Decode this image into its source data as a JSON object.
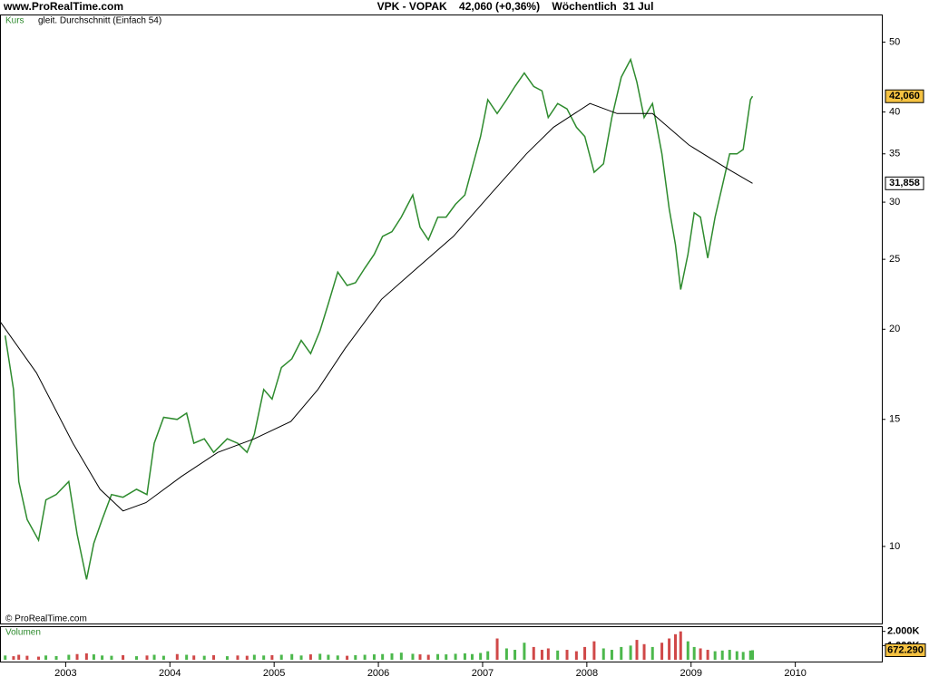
{
  "header": {
    "site": "www.ProRealTime.com"
  },
  "footer": {
    "copyright": "© ProRealTime.com"
  },
  "chart_data": [
    {
      "type": "line",
      "title": "VPK - VOPAK    42,060 (+0,36%)    Wöchentlich  31 Jul",
      "log_scale": true,
      "xlim": [
        2002.37,
        2010.83
      ],
      "ylim": [
        7.82,
        54.6
      ],
      "yticks": [
        10,
        15,
        20,
        25,
        30,
        35,
        40,
        50
      ],
      "series": [
        {
          "name": "Kurs",
          "color": "#2e8b2e",
          "last_label": "42,060",
          "x": [
            2002.42,
            2002.5,
            2002.55,
            2002.63,
            2002.74,
            2002.81,
            2002.91,
            2003.03,
            2003.11,
            2003.2,
            2003.27,
            2003.35,
            2003.44,
            2003.55,
            2003.68,
            2003.78,
            2003.85,
            2003.94,
            2004.07,
            2004.16,
            2004.23,
            2004.33,
            2004.42,
            2004.55,
            2004.65,
            2004.74,
            2004.81,
            2004.9,
            2004.98,
            2005.07,
            2005.17,
            2005.26,
            2005.35,
            2005.44,
            2005.52,
            2005.61,
            2005.7,
            2005.78,
            2005.87,
            2005.96,
            2006.04,
            2006.13,
            2006.22,
            2006.33,
            2006.4,
            2006.48,
            2006.57,
            2006.65,
            2006.74,
            2006.83,
            2006.9,
            2006.98,
            2007.05,
            2007.14,
            2007.23,
            2007.31,
            2007.4,
            2007.49,
            2007.57,
            2007.63,
            2007.72,
            2007.81,
            2007.9,
            2007.98,
            2008.07,
            2008.16,
            2008.24,
            2008.33,
            2008.42,
            2008.48,
            2008.55,
            2008.63,
            2008.72,
            2008.79,
            2008.85,
            2008.9,
            2008.97,
            2009.03,
            2009.09,
            2009.16,
            2009.23,
            2009.3,
            2009.37,
            2009.44,
            2009.5,
            2009.57,
            2009.59
          ],
          "values": [
            19.6,
            16.5,
            12.3,
            10.9,
            10.2,
            11.6,
            11.8,
            12.3,
            10.4,
            9.0,
            10.1,
            10.9,
            11.8,
            11.7,
            12.0,
            11.8,
            13.9,
            15.1,
            15.0,
            15.3,
            13.9,
            14.1,
            13.5,
            14.1,
            13.9,
            13.5,
            14.3,
            16.5,
            16.0,
            17.7,
            18.2,
            19.3,
            18.5,
            19.9,
            21.7,
            24.0,
            23.0,
            23.2,
            24.3,
            25.4,
            26.9,
            27.3,
            28.6,
            30.7,
            27.7,
            26.6,
            28.6,
            28.6,
            29.8,
            30.7,
            33.5,
            37.0,
            41.6,
            39.8,
            41.6,
            43.4,
            45.3,
            43.4,
            42.8,
            39.3,
            41.1,
            40.4,
            38.1,
            37.0,
            33.0,
            33.9,
            39.3,
            44.7,
            47.3,
            44.0,
            39.3,
            41.1,
            35.0,
            29.4,
            26.2,
            22.7,
            25.4,
            29.0,
            28.6,
            25.1,
            28.6,
            31.6,
            35.0,
            35.0,
            35.5,
            41.6,
            42.06
          ]
        },
        {
          "name": "gleit. Durchschnitt (Einfach 54)",
          "color": "#000000",
          "last_label": "31,858",
          "x": [
            2002.37,
            2002.72,
            2003.07,
            2003.33,
            2003.55,
            2003.77,
            2004.11,
            2004.46,
            2004.81,
            2005.16,
            2005.42,
            2005.68,
            2006.03,
            2006.37,
            2006.72,
            2007.07,
            2007.42,
            2007.68,
            2008.03,
            2008.29,
            2008.63,
            2008.98,
            2009.33,
            2009.59
          ],
          "values": [
            20.5,
            17.4,
            13.9,
            12.0,
            11.2,
            11.5,
            12.5,
            13.5,
            14.1,
            14.9,
            16.5,
            18.8,
            22.0,
            24.3,
            26.9,
            30.7,
            35.0,
            38.1,
            41.1,
            39.8,
            39.8,
            36.0,
            33.5,
            31.858
          ]
        }
      ]
    },
    {
      "type": "bar",
      "title": "Volumen",
      "xlim": [
        2002.37,
        2010.83
      ],
      "ylim": [
        0,
        2300
      ],
      "xticks": [
        2003,
        2004,
        2005,
        2006,
        2007,
        2008,
        2009,
        2010
      ],
      "yticks": [
        {
          "value": 2000,
          "label": "2.000K"
        },
        {
          "value": 1000,
          "label": "1.000K"
        }
      ],
      "colors": {
        "up": "#4cb84c",
        "down": "#d04848"
      },
      "last_label": "672.290",
      "values": [
        300,
        250,
        350,
        280,
        220,
        300,
        260,
        350,
        400,
        450,
        380,
        300,
        280,
        320,
        250,
        300,
        350,
        280,
        400,
        350,
        300,
        280,
        320,
        250,
        300,
        280,
        350,
        300,
        320,
        350,
        400,
        300,
        380,
        420,
        350,
        300,
        280,
        320,
        350,
        380,
        400,
        450,
        500,
        420,
        380,
        350,
        400,
        380,
        420,
        450,
        400,
        480,
        600,
        1500,
        800,
        700,
        1200,
        900,
        700,
        800,
        650,
        700,
        600,
        900,
        1300,
        800,
        700,
        900,
        1000,
        1400,
        1100,
        900,
        1200,
        1500,
        1800,
        2000,
        1300,
        900,
        800,
        700,
        600,
        650,
        700,
        600,
        550,
        650,
        672.29
      ]
    }
  ]
}
